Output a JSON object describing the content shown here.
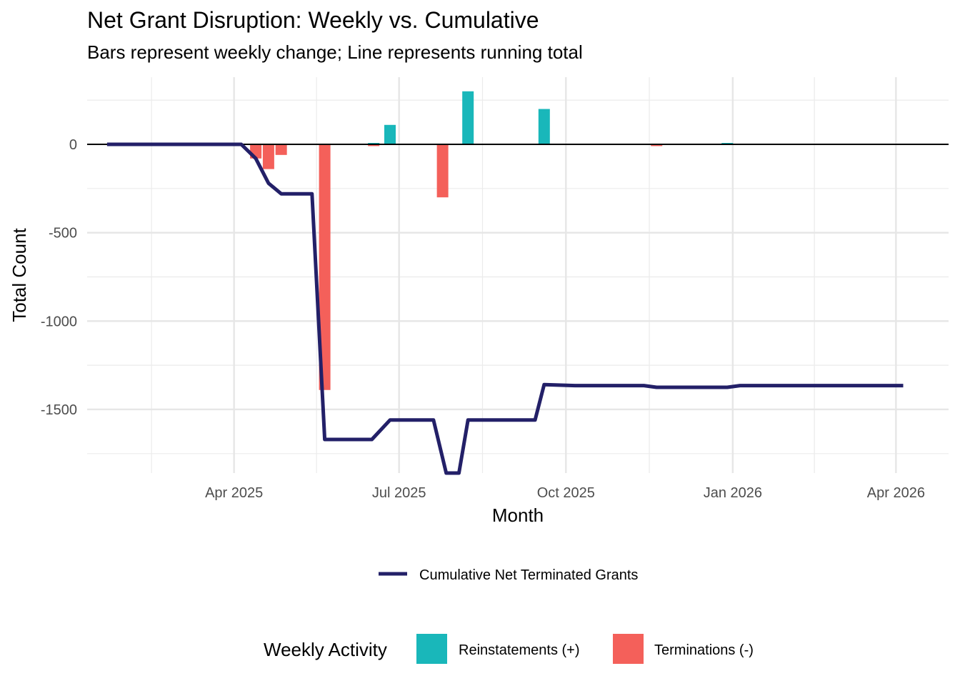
{
  "chart_data": {
    "type": "bar+line",
    "title": "Net Grant Disruption: Weekly vs. Cumulative",
    "subtitle": "Bars represent weekly change; Line represents running total",
    "xlabel": "Month",
    "ylabel": "Total Count",
    "x_ticks": [
      "Apr 2025",
      "Jul 2025",
      "Oct 2025",
      "Jan 2026",
      "Apr 2026"
    ],
    "y_ticks": [
      0,
      -500,
      -1000,
      -1500
    ],
    "xlim": [
      "2025-01-10",
      "2026-04-30"
    ],
    "ylim": [
      -1860,
      380
    ],
    "grid": true,
    "bars_legend_title": "Weekly Activity",
    "colors": {
      "reinstatements": "#19B7BA",
      "terminations": "#F4605A",
      "cumulative": "#232068"
    },
    "bar_series": [
      {
        "name": "Reinstatements (+)",
        "points": [
          {
            "x": "2025-06-17",
            "y": 8
          },
          {
            "x": "2025-06-26",
            "y": 110
          },
          {
            "x": "2025-08-08",
            "y": 300
          },
          {
            "x": "2025-09-19",
            "y": 200
          },
          {
            "x": "2025-12-29",
            "y": 8
          }
        ]
      },
      {
        "name": "Terminations (-)",
        "points": [
          {
            "x": "2025-04-13",
            "y": -80
          },
          {
            "x": "2025-04-20",
            "y": -140
          },
          {
            "x": "2025-04-27",
            "y": -60
          },
          {
            "x": "2025-05-21",
            "y": -1390
          },
          {
            "x": "2025-06-17",
            "y": -10
          },
          {
            "x": "2025-07-25",
            "y": -300
          },
          {
            "x": "2025-11-20",
            "y": -10
          }
        ]
      }
    ],
    "line_series": {
      "name": "Cumulative Net Terminated Grants",
      "points": [
        {
          "x": "2025-01-21",
          "y": 0
        },
        {
          "x": "2025-04-05",
          "y": 0
        },
        {
          "x": "2025-04-13",
          "y": -80
        },
        {
          "x": "2025-04-20",
          "y": -220
        },
        {
          "x": "2025-04-27",
          "y": -280
        },
        {
          "x": "2025-05-14",
          "y": -280
        },
        {
          "x": "2025-05-21",
          "y": -1670
        },
        {
          "x": "2025-06-16",
          "y": -1670
        },
        {
          "x": "2025-06-26",
          "y": -1560
        },
        {
          "x": "2025-07-20",
          "y": -1560
        },
        {
          "x": "2025-07-27",
          "y": -1860
        },
        {
          "x": "2025-08-03",
          "y": -1860
        },
        {
          "x": "2025-08-08",
          "y": -1560
        },
        {
          "x": "2025-09-14",
          "y": -1560
        },
        {
          "x": "2025-09-19",
          "y": -1360
        },
        {
          "x": "2025-10-06",
          "y": -1365
        },
        {
          "x": "2025-11-13",
          "y": -1365
        },
        {
          "x": "2025-11-20",
          "y": -1375
        },
        {
          "x": "2025-12-29",
          "y": -1375
        },
        {
          "x": "2026-01-05",
          "y": -1365
        },
        {
          "x": "2026-04-05",
          "y": -1365
        }
      ]
    }
  }
}
